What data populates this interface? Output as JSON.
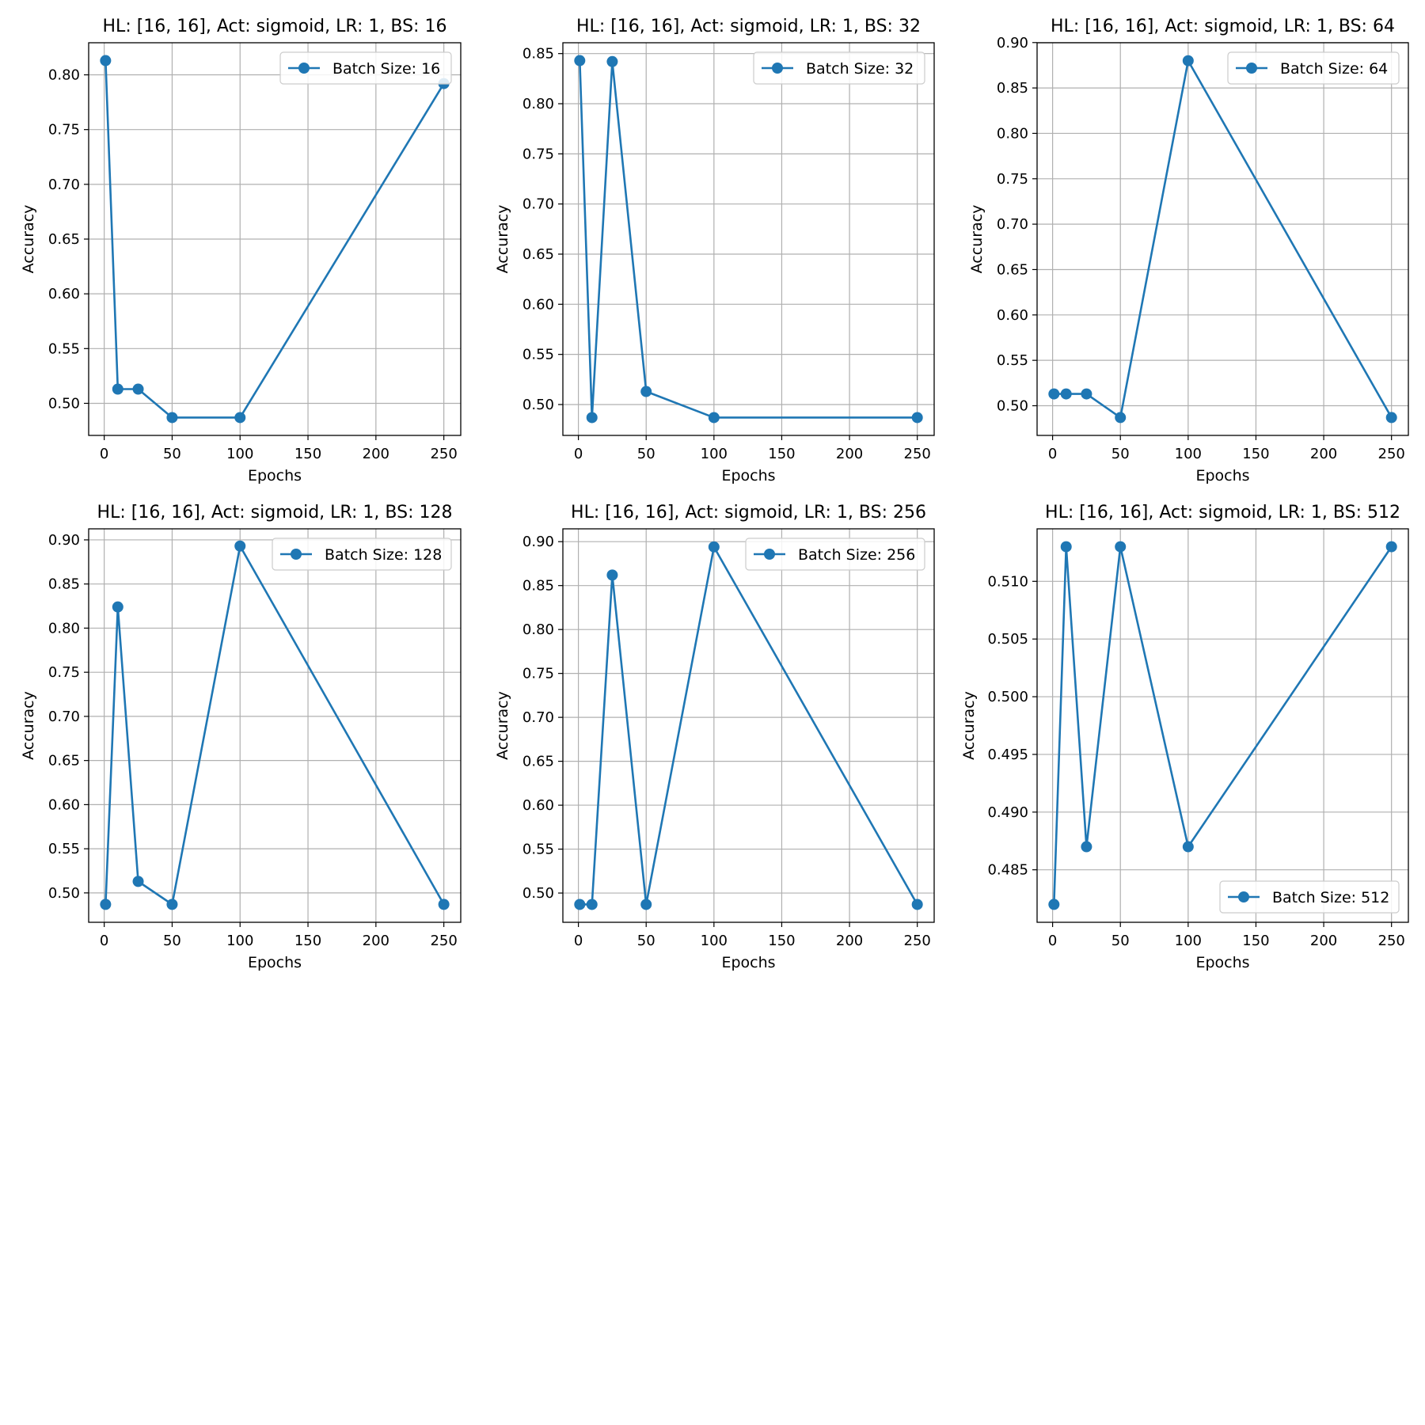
{
  "figure": {
    "background": "#ffffff",
    "line_color": "#1f77b4",
    "grid_color": "#b0b0b0"
  },
  "chart_data": [
    {
      "type": "line",
      "title": "HL: [16, 16], Act: sigmoid, LR: 1, BS: 16",
      "xlabel": "Epochs",
      "ylabel": "Accuracy",
      "x": [
        1,
        10,
        25,
        50,
        100,
        250
      ],
      "series": [
        {
          "name": "Batch Size: 16",
          "values": [
            0.813,
            0.513,
            0.513,
            0.487,
            0.487,
            0.792
          ]
        }
      ],
      "xlim": [
        -11.45,
        262.45
      ],
      "ylim": [
        0.4707,
        0.8293
      ],
      "xticks": [
        0,
        50,
        100,
        150,
        200,
        250
      ],
      "yticks": [
        0.5,
        0.55,
        0.6,
        0.65,
        0.7,
        0.75,
        0.8
      ],
      "ytick_labels": [
        "0.50",
        "0.55",
        "0.60",
        "0.65",
        "0.70",
        "0.75",
        "0.80"
      ],
      "grid": true,
      "legend": "upper right"
    },
    {
      "type": "line",
      "title": "HL: [16, 16], Act: sigmoid, LR: 1, BS: 32",
      "xlabel": "Epochs",
      "ylabel": "Accuracy",
      "x": [
        1,
        10,
        25,
        50,
        100,
        250
      ],
      "series": [
        {
          "name": "Batch Size: 32",
          "values": [
            0.843,
            0.487,
            0.842,
            0.513,
            0.487,
            0.487
          ]
        }
      ],
      "xlim": [
        -11.45,
        262.45
      ],
      "ylim": [
        0.4692,
        0.8608
      ],
      "xticks": [
        0,
        50,
        100,
        150,
        200,
        250
      ],
      "yticks": [
        0.5,
        0.55,
        0.6,
        0.65,
        0.7,
        0.75,
        0.8,
        0.85
      ],
      "ytick_labels": [
        "0.50",
        "0.55",
        "0.60",
        "0.65",
        "0.70",
        "0.75",
        "0.80",
        "0.85"
      ],
      "grid": true,
      "legend": "upper right"
    },
    {
      "type": "line",
      "title": "HL: [16, 16], Act: sigmoid, LR: 1, BS: 64",
      "xlabel": "Epochs",
      "ylabel": "Accuracy",
      "x": [
        1,
        10,
        25,
        50,
        100,
        250
      ],
      "series": [
        {
          "name": "Batch Size: 64",
          "values": [
            0.513,
            0.513,
            0.513,
            0.487,
            0.88,
            0.487
          ]
        }
      ],
      "xlim": [
        -11.45,
        262.45
      ],
      "ylim": [
        0.4673,
        0.8998
      ],
      "xticks": [
        0,
        50,
        100,
        150,
        200,
        250
      ],
      "yticks": [
        0.5,
        0.55,
        0.6,
        0.65,
        0.7,
        0.75,
        0.8,
        0.85,
        0.9
      ],
      "ytick_labels": [
        "0.50",
        "0.55",
        "0.60",
        "0.65",
        "0.70",
        "0.75",
        "0.80",
        "0.85",
        "0.90"
      ],
      "grid": true,
      "legend": "upper right"
    },
    {
      "type": "line",
      "title": "HL: [16, 16], Act: sigmoid, LR: 1, BS: 128",
      "xlabel": "Epochs",
      "ylabel": "Accuracy",
      "x": [
        1,
        10,
        25,
        50,
        100,
        250
      ],
      "series": [
        {
          "name": "Batch Size: 128",
          "values": [
            0.487,
            0.824,
            0.513,
            0.487,
            0.893,
            0.487
          ]
        }
      ],
      "xlim": [
        -11.45,
        262.45
      ],
      "ylim": [
        0.4667,
        0.9125
      ],
      "xticks": [
        0,
        50,
        100,
        150,
        200,
        250
      ],
      "yticks": [
        0.5,
        0.55,
        0.6,
        0.65,
        0.7,
        0.75,
        0.8,
        0.85,
        0.9
      ],
      "ytick_labels": [
        "0.50",
        "0.55",
        "0.60",
        "0.65",
        "0.70",
        "0.75",
        "0.80",
        "0.85",
        "0.90"
      ],
      "grid": true,
      "legend": "upper right"
    },
    {
      "type": "line",
      "title": "HL: [16, 16], Act: sigmoid, LR: 1, BS: 256",
      "xlabel": "Epochs",
      "ylabel": "Accuracy",
      "x": [
        1,
        10,
        25,
        50,
        100,
        250
      ],
      "series": [
        {
          "name": "Batch Size: 256",
          "values": [
            0.487,
            0.487,
            0.862,
            0.487,
            0.894,
            0.487
          ]
        }
      ],
      "xlim": [
        -11.45,
        262.45
      ],
      "ylim": [
        0.4667,
        0.9146
      ],
      "xticks": [
        0,
        50,
        100,
        150,
        200,
        250
      ],
      "yticks": [
        0.5,
        0.55,
        0.6,
        0.65,
        0.7,
        0.75,
        0.8,
        0.85,
        0.9
      ],
      "ytick_labels": [
        "0.50",
        "0.55",
        "0.60",
        "0.65",
        "0.70",
        "0.75",
        "0.80",
        "0.85",
        "0.90"
      ],
      "grid": true,
      "legend": "upper right"
    },
    {
      "type": "line",
      "title": "HL: [16, 16], Act: sigmoid, LR: 1, BS: 512",
      "xlabel": "Epochs",
      "ylabel": "Accuracy",
      "x": [
        1,
        10,
        25,
        50,
        100,
        250
      ],
      "series": [
        {
          "name": "Batch Size: 512",
          "values": [
            0.482,
            0.513,
            0.487,
            0.513,
            0.487,
            0.513
          ]
        }
      ],
      "xlim": [
        -11.45,
        262.45
      ],
      "ylim": [
        0.48045,
        0.51455
      ],
      "xticks": [
        0,
        50,
        100,
        150,
        200,
        250
      ],
      "yticks": [
        0.485,
        0.49,
        0.495,
        0.5,
        0.505,
        0.51
      ],
      "ytick_labels": [
        "0.485",
        "0.490",
        "0.495",
        "0.500",
        "0.505",
        "0.510"
      ],
      "grid": true,
      "legend": "lower right"
    }
  ]
}
